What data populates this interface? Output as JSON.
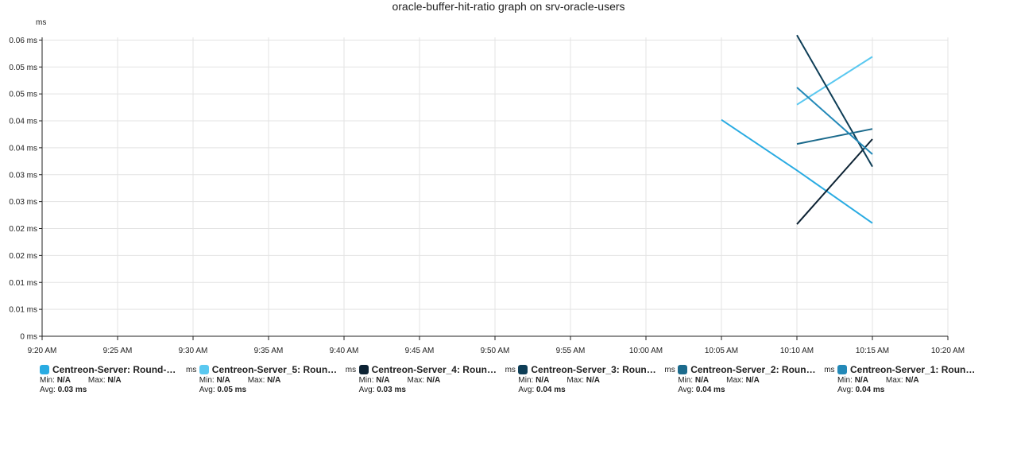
{
  "chart_data": {
    "type": "line",
    "title": "oracle-buffer-hit-ratio graph on srv-oracle-users",
    "ylabel": "ms",
    "x_ticks": [
      "9:20 AM",
      "9:25 AM",
      "9:30 AM",
      "9:35 AM",
      "9:40 AM",
      "9:45 AM",
      "9:50 AM",
      "9:55 AM",
      "10:00 AM",
      "10:05 AM",
      "10:10 AM",
      "10:15 AM",
      "10:20 AM"
    ],
    "y_ticks": [
      "0 ms",
      "0.01 ms",
      "0.01 ms",
      "0.02 ms",
      "0.02 ms",
      "0.03 ms",
      "0.03 ms",
      "0.04 ms",
      "0.04 ms",
      "0.05 ms",
      "0.05 ms",
      "0.06 ms"
    ],
    "y_tick_values": [
      0,
      0.005,
      0.01,
      0.015,
      0.02,
      0.025,
      0.03,
      0.035,
      0.04,
      0.045,
      0.05,
      0.055
    ],
    "xlim": [
      "9:20 AM",
      "10:20 AM"
    ],
    "ylim": [
      0,
      0.0555
    ],
    "grid": true,
    "legend_position": "bottom",
    "series": [
      {
        "name": "Centreon-Server: Round-Tri...",
        "color": "#29abe2",
        "x": [
          "10:05 AM",
          "10:10 AM",
          "10:15 AM"
        ],
        "y": [
          0.0402,
          0.0308,
          0.021
        ]
      },
      {
        "name": "Centreon-Server_5: Round-T...",
        "color": "#5ac8f0",
        "x": [
          "10:10 AM",
          "10:15 AM"
        ],
        "y": [
          0.043,
          0.0519
        ]
      },
      {
        "name": "Centreon-Server_4: Round-T...",
        "color": "#0c2233",
        "x": [
          "10:10 AM",
          "10:15 AM"
        ],
        "y": [
          0.0208,
          0.0366
        ]
      },
      {
        "name": "Centreon-Server_3: Round-T...",
        "color": "#0d3d56",
        "x": [
          "10:10 AM",
          "10:15 AM"
        ],
        "y": [
          0.0559,
          0.0315
        ]
      },
      {
        "name": "Centreon-Server_2: Round-T...",
        "color": "#1b6a8c",
        "x": [
          "10:10 AM",
          "10:15 AM"
        ],
        "y": [
          0.0357,
          0.0385
        ]
      },
      {
        "name": "Centreon-Server_1: Round-T...",
        "color": "#2389b8",
        "x": [
          "10:10 AM",
          "10:15 AM"
        ],
        "y": [
          0.0462,
          0.0338
        ]
      }
    ]
  },
  "legend": [
    {
      "name": "Centreon-Server: Round-Tri...",
      "unit": "ms",
      "min_label": "Min:",
      "min": "N/A",
      "max_label": "Max:",
      "max": "N/A",
      "avg_label": "Avg:",
      "avg": "0.03 ms",
      "color": "#29abe2"
    },
    {
      "name": "Centreon-Server_5: Round-T...",
      "unit": "ms",
      "min_label": "Min:",
      "min": "N/A",
      "max_label": "Max:",
      "max": "N/A",
      "avg_label": "Avg:",
      "avg": "0.05 ms",
      "color": "#5ac8f0"
    },
    {
      "name": "Centreon-Server_4: Round-T...",
      "unit": "ms",
      "min_label": "Min:",
      "min": "N/A",
      "max_label": "Max:",
      "max": "N/A",
      "avg_label": "Avg:",
      "avg": "0.03 ms",
      "color": "#0c2233"
    },
    {
      "name": "Centreon-Server_3: Round-T...",
      "unit": "ms",
      "min_label": "Min:",
      "min": "N/A",
      "max_label": "Max:",
      "max": "N/A",
      "avg_label": "Avg:",
      "avg": "0.04 ms",
      "color": "#0d3d56"
    },
    {
      "name": "Centreon-Server_2: Round-T...",
      "unit": "ms",
      "min_label": "Min:",
      "min": "N/A",
      "max_label": "Max:",
      "max": "N/A",
      "avg_label": "Avg:",
      "avg": "0.04 ms",
      "color": "#1b6a8c"
    },
    {
      "name": "Centreon-Server_1: Round-T...",
      "unit": "",
      "min_label": "Min:",
      "min": "N/A",
      "max_label": "Max:",
      "max": "N/A",
      "avg_label": "Avg:",
      "avg": "0.04 ms",
      "color": "#2389b8"
    }
  ]
}
